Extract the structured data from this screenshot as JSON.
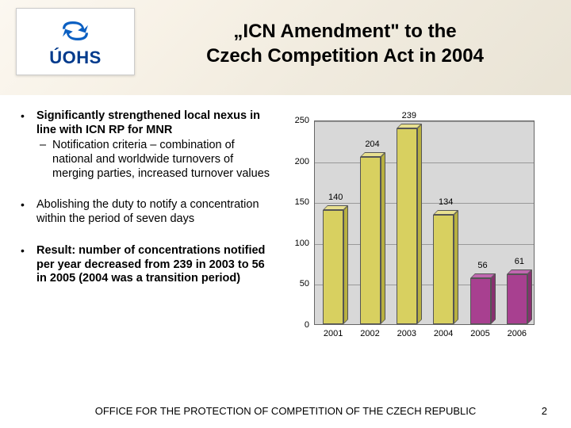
{
  "logo": {
    "text": "ÚOHS",
    "swirl_color": "#0a5fc2"
  },
  "title_line1": "„ICN Amendment\"  to the",
  "title_line2": "Czech Competition Act in 2004",
  "bullets": [
    {
      "bold_lead": "Significantly strengthened local nexus in line with ICN RP for MNR",
      "sub": [
        "Notification criteria – combination of national and worldwide turnovers of merging parties, increased turnover values"
      ]
    },
    {
      "text": "Abolishing the duty to notify a concentration within the period of seven days"
    },
    {
      "bold_text": "Result: number of concentrations notified per year decreased from 239 in 2003 to 56 in 2005 (2004 was a transition period)"
    }
  ],
  "chart": {
    "type": "bar-3d",
    "background_color": "#d8d8d8",
    "grid_color": "#999999",
    "axis_color": "#666666",
    "ylim": [
      0,
      250
    ],
    "ytick_step": 50,
    "categories": [
      "2001",
      "2002",
      "2003",
      "2004",
      "2005",
      "2006"
    ],
    "values": [
      140,
      204,
      239,
      134,
      56,
      61
    ],
    "bar_colors": [
      "#d8d060",
      "#d8d060",
      "#d8d060",
      "#d8d060",
      "#a84090",
      "#a84090"
    ],
    "bar_top_colors": [
      "#e8e090",
      "#e8e090",
      "#e8e090",
      "#e8e090",
      "#c068b0",
      "#c068b0"
    ],
    "bar_side_colors": [
      "#b8b040",
      "#b8b040",
      "#b8b040",
      "#b8b040",
      "#883070",
      "#883070"
    ],
    "label_fontsize": 11
  },
  "footer_text": "OFFICE FOR THE PROTECTION OF COMPETITION OF THE CZECH REPUBLIC",
  "page_number": "2"
}
